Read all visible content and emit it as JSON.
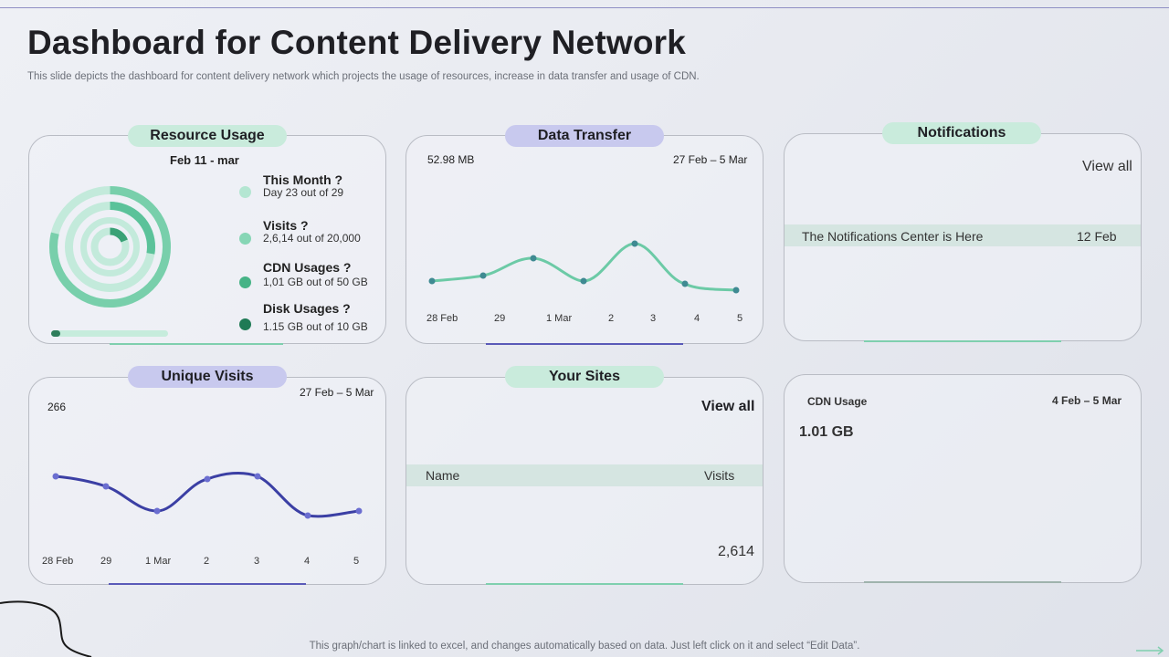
{
  "header": {
    "title": "Dashboard for Content Delivery Network",
    "subtitle": "This slide depicts the dashboard for content delivery network which projects the usage of resources, increase in data transfer and usage of CDN."
  },
  "resource_usage": {
    "heading": "Resource Usage",
    "date_range": "Feb 11 - mar",
    "items": [
      {
        "label": "This Month  ?",
        "detail": "Day 23 out of 29",
        "color": "#b4e6d2"
      },
      {
        "label": "Visits  ?",
        "detail": "2,6,14 out of 20,000",
        "color": "#86d6b5"
      },
      {
        "label": "CDN Usages  ?",
        "detail": "1,01 GB out of 50 GB",
        "color": "#46b386"
      },
      {
        "label": "Disk  Usages  ?",
        "detail": "1.15 GB out of 10 GB",
        "color": "#1f7a55"
      }
    ],
    "progress": 0.08
  },
  "data_transfer": {
    "heading": "Data Transfer",
    "value": "52.98 MB",
    "date_range": "27 Feb – 5 Mar",
    "x_labels": [
      "28 Feb",
      "29",
      "1 Mar",
      "2",
      "3",
      "4",
      "5"
    ],
    "line_color": "#6ccaa6",
    "point_color": "#3f8a92"
  },
  "notifications": {
    "heading": "Notifications",
    "view_all": "View all",
    "message": "The Notifications Center is Here",
    "date": "12 Feb"
  },
  "unique_visits": {
    "heading": "Unique Visits",
    "value": "266",
    "date_range": "27 Feb – 5 Mar",
    "x_labels": [
      "28 Feb",
      "29",
      "1 Mar",
      "2",
      "3",
      "4",
      "5"
    ],
    "line_color": "#3b3fa4",
    "point_color": "#6b6ed0"
  },
  "your_sites": {
    "heading": "Your Sites",
    "view_all": "View all",
    "col_name": "Name",
    "col_visits": "Visits",
    "total": "2,614"
  },
  "cdn_usage": {
    "label": "CDN Usage",
    "date_range": "4 Feb – 5 Mar",
    "value": "1.01 GB"
  },
  "footer": {
    "note": "This graph/chart is linked to excel,  and changes automatically based on data. Just left click on it and select “Edit Data”."
  }
}
